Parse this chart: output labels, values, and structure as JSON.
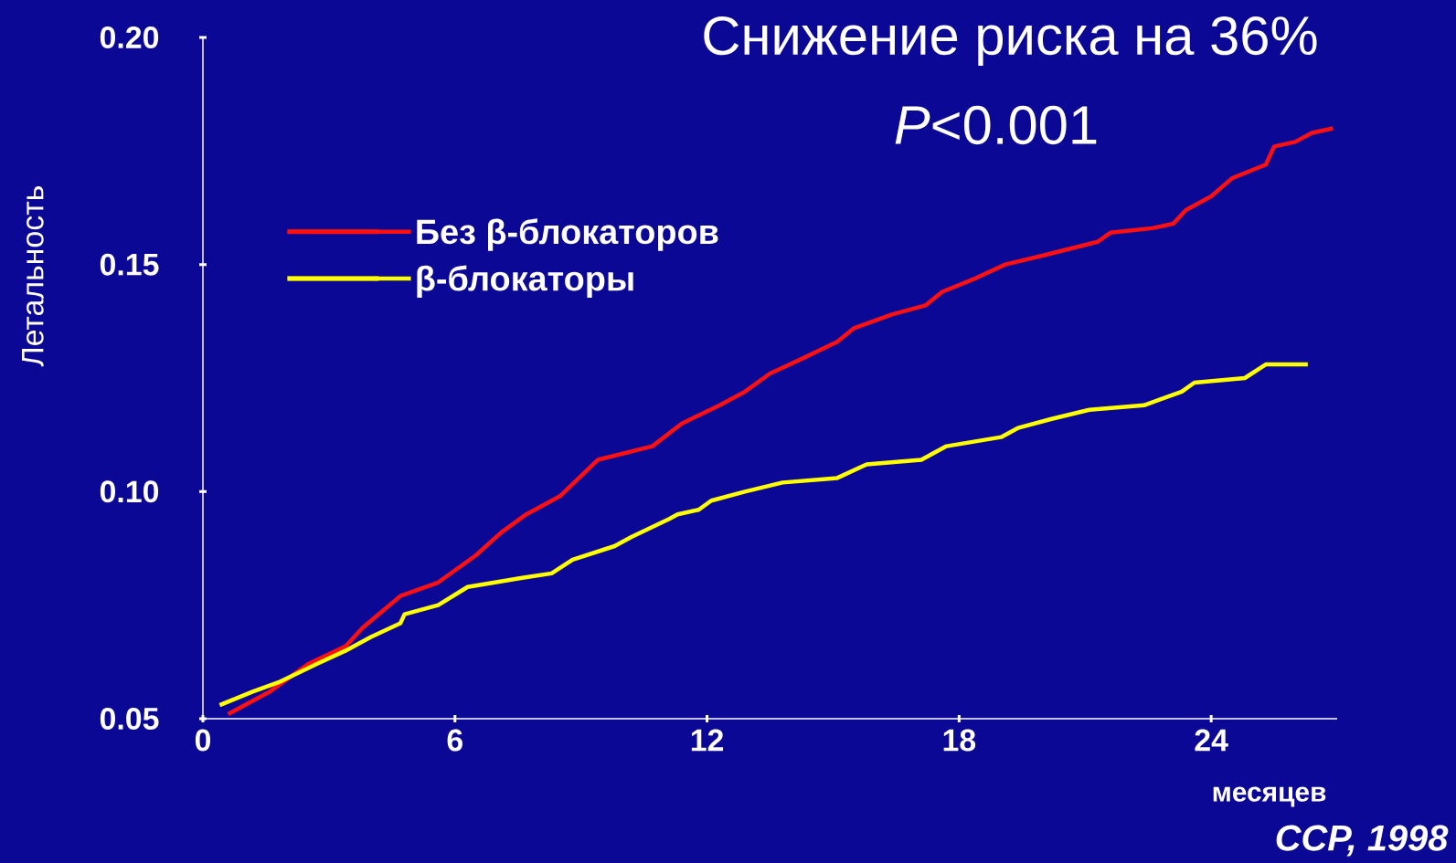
{
  "chart_data": {
    "type": "line",
    "title": "Снижение риска на 36%",
    "subtitle": "*P*<0.001",
    "xlabel": "месяцев",
    "ylabel": "Летальность",
    "annotations": [
      "CCP, 1998"
    ],
    "xlim": [
      0,
      27
    ],
    "xticks": [
      0,
      6,
      12,
      18,
      24
    ],
    "ylim": [
      0.05,
      0.2
    ],
    "yticks": [
      {
        "value": 0.05,
        "label": "0.05"
      },
      {
        "value": 0.1,
        "label": "0.10"
      },
      {
        "value": 0.15,
        "label": "0.15"
      },
      {
        "value": 0.2,
        "label": "0.20"
      }
    ],
    "grid": false,
    "legend": "top left",
    "marker": "none",
    "line_style": "solid",
    "series": [
      {
        "name": "Без β-блокаторов",
        "color": "#ff1010",
        "x": [
          0.6,
          1.6,
          2.5,
          3.4,
          3.8,
          4.7,
          5.6,
          6.5,
          7.1,
          7.7,
          8.5,
          9.4,
          10.7,
          11.4,
          12.3,
          12.9,
          13.5,
          14.2,
          15.1,
          15.5,
          16.4,
          17.2,
          17.6,
          18.4,
          19.1,
          20.0,
          21.3,
          21.6,
          22.6,
          23.1,
          23.4,
          24.0,
          24.5,
          25.3,
          25.5,
          26.0,
          26.4,
          26.9
        ],
        "values": [
          0.051,
          0.056,
          0.062,
          0.066,
          0.07,
          0.077,
          0.08,
          0.086,
          0.091,
          0.095,
          0.099,
          0.107,
          0.11,
          0.115,
          0.119,
          0.122,
          0.126,
          0.129,
          0.133,
          0.136,
          0.139,
          0.141,
          0.144,
          0.147,
          0.15,
          0.152,
          0.155,
          0.157,
          0.158,
          0.159,
          0.162,
          0.165,
          0.169,
          0.172,
          0.176,
          0.177,
          0.179,
          0.18
        ]
      },
      {
        "name": "β-блокаторы",
        "color": "#ffff00",
        "x": [
          0.4,
          1.2,
          1.8,
          2.7,
          3.4,
          4.0,
          4.7,
          4.8,
          5.6,
          6.3,
          7.6,
          8.3,
          8.8,
          9.8,
          10.2,
          11.1,
          11.3,
          11.8,
          12.1,
          12.9,
          13.8,
          15.1,
          15.8,
          17.1,
          17.7,
          19.0,
          19.4,
          20.2,
          21.1,
          22.4,
          23.3,
          23.6,
          24.8,
          25.3,
          26.3
        ],
        "values": [
          0.053,
          0.056,
          0.058,
          0.062,
          0.065,
          0.068,
          0.071,
          0.073,
          0.075,
          0.079,
          0.081,
          0.082,
          0.085,
          0.088,
          0.09,
          0.094,
          0.095,
          0.096,
          0.098,
          0.1,
          0.102,
          0.103,
          0.106,
          0.107,
          0.11,
          0.112,
          0.114,
          0.116,
          0.118,
          0.119,
          0.122,
          0.124,
          0.125,
          0.128,
          0.128
        ]
      }
    ]
  }
}
